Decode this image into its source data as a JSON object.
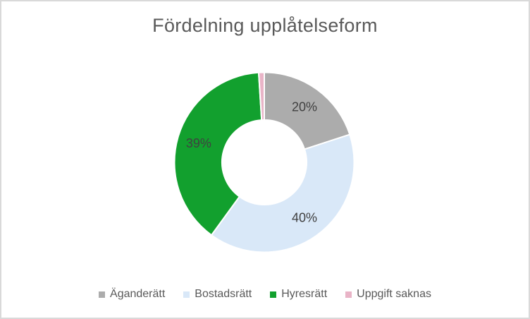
{
  "frame": {
    "background": "#FFFFFF",
    "border_color": "#D9D9D9"
  },
  "chart_data": {
    "type": "pie",
    "subtype": "donut",
    "title": "Fördelning upplåtelseform",
    "categories": [
      "Äganderätt",
      "Bostadsrätt",
      "Hyresrätt",
      "Uppgift saknas"
    ],
    "values": [
      20,
      40,
      39,
      1
    ],
    "data_labels": [
      "20%",
      "40%",
      "39%",
      ""
    ],
    "colors": [
      "#ACACAC",
      "#D9E8F8",
      "#12A02E",
      "#E9B4C7"
    ],
    "start_angle_deg": 0,
    "direction": "clockwise",
    "donut_hole_ratio": 0.47,
    "slice_gap_color": "#FFFFFF",
    "legend_position": "bottom",
    "title_color": "#595959",
    "data_label_color": "#404040",
    "legend_text_color": "#595959"
  }
}
